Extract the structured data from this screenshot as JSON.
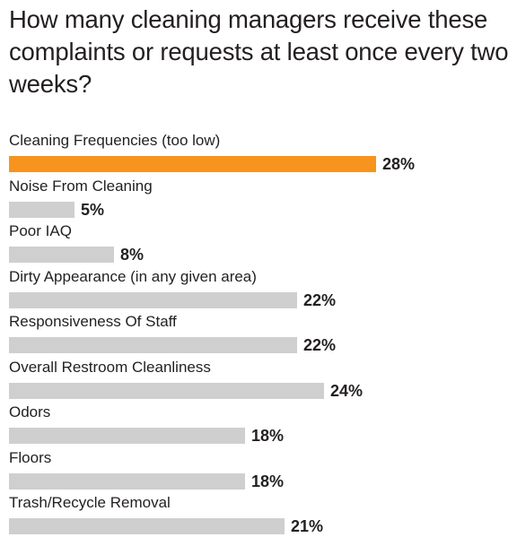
{
  "chart_data": {
    "type": "bar",
    "orientation": "horizontal",
    "title": "How many cleaning managers receive these complaints or requests at least once every two weeks?",
    "categories": [
      "Cleaning Frequencies (too low)",
      "Noise From Cleaning",
      "Poor IAQ",
      "Dirty Appearance (in any given area)",
      "Responsiveness Of Staff",
      "Overall Restroom Cleanliness",
      "Odors",
      "Floors",
      "Trash/Recycle Removal"
    ],
    "values": [
      28,
      5,
      8,
      22,
      22,
      24,
      18,
      18,
      21
    ],
    "value_labels": [
      "28%",
      "5%",
      "8%",
      "22%",
      "22%",
      "24%",
      "18%",
      "18%",
      "21%"
    ],
    "unit": "%",
    "xlim": [
      0,
      28
    ],
    "highlight_index": 0,
    "colors": {
      "highlight": "#f7941d",
      "bar": "#cfcfcf",
      "text": "#231f20"
    },
    "grid": false,
    "legend": "none"
  }
}
